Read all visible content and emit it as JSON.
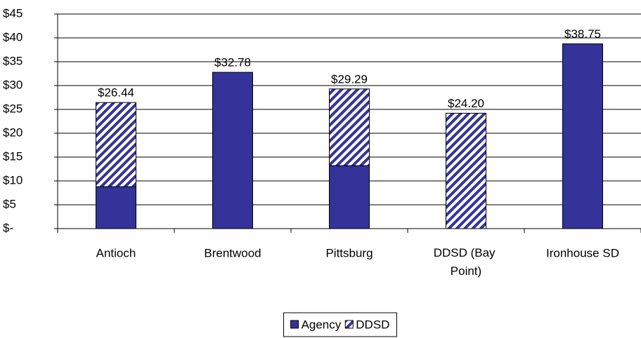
{
  "chart_data": {
    "type": "stacked_bar",
    "categories": [
      "Antioch",
      "Brentwood",
      "Pittsburg",
      "DDSD (Bay Point)",
      "Ironhouse SD"
    ],
    "series": [
      {
        "name": "Agency",
        "color": "#333399",
        "values": [
          8.8,
          32.78,
          13.2,
          0,
          38.75
        ]
      },
      {
        "name": "DDSD",
        "color": "#333399",
        "hatch": true,
        "values": [
          17.64,
          0,
          16.09,
          24.2,
          0
        ]
      }
    ],
    "total_labels": [
      "$26.44",
      "$32.78",
      "$29.29",
      "$24.20",
      "$38.75"
    ],
    "ylim": [
      0,
      45
    ],
    "yticks": [
      {
        "value": 0,
        "label": "$-"
      },
      {
        "value": 5,
        "label": "$5"
      },
      {
        "value": 10,
        "label": "$10"
      },
      {
        "value": 15,
        "label": "$15"
      },
      {
        "value": 20,
        "label": "$20"
      },
      {
        "value": 25,
        "label": "$25"
      },
      {
        "value": 30,
        "label": "$30"
      },
      {
        "value": 35,
        "label": "$35"
      },
      {
        "value": 40,
        "label": "$40"
      },
      {
        "value": 45,
        "label": "$45"
      }
    ],
    "grid": true,
    "legend": "bottom"
  }
}
